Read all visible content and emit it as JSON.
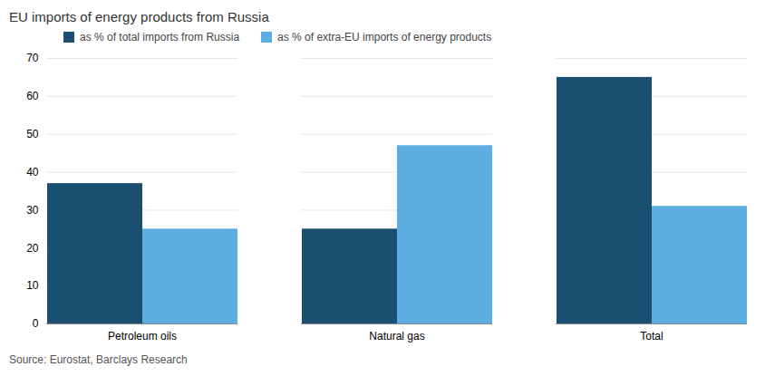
{
  "chart_data": {
    "type": "bar",
    "title": "EU imports of energy products from Russia",
    "categories": [
      "Petroleum oils",
      "Natural gas",
      "Total"
    ],
    "series": [
      {
        "name": "as % of total imports from Russia",
        "color": "#1b4f72",
        "values": [
          37,
          25,
          65
        ]
      },
      {
        "name": "as % of extra-EU imports of energy products",
        "color": "#5dade2",
        "values": [
          25,
          47,
          31
        ]
      }
    ],
    "ylim": [
      0,
      70
    ],
    "yticks": [
      0,
      10,
      20,
      30,
      40,
      50,
      60,
      70
    ],
    "grid": true,
    "legend": "upper left",
    "source": "Source: Eurostat, Barclays Research"
  }
}
